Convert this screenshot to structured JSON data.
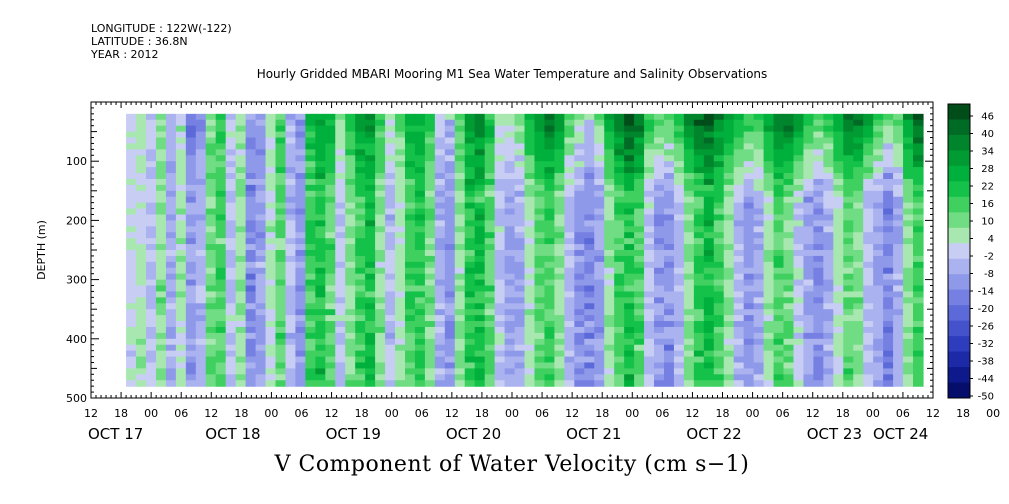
{
  "header": {
    "longitude": "LONGITUDE : 122W(-122)",
    "latitude": "LATITUDE : 36.8N",
    "year": "YEAR : 2012"
  },
  "chart_data": {
    "type": "heatmap",
    "title": "Hourly Gridded MBARI Mooring M1 Sea Water Temperature and Salinity Observations",
    "variable_label": "V Component of Water Velocity (cm s−1)",
    "ylabel": "DEPTH (m)",
    "ylim": [
      500,
      0
    ],
    "y_ticks": [
      "100",
      "200",
      "300",
      "400",
      "500"
    ],
    "y_tick_values": [
      100,
      200,
      300,
      400,
      500
    ],
    "x_hour_labels": [
      "12",
      "18",
      "00",
      "06",
      "12",
      "18",
      "00",
      "06",
      "12",
      "18",
      "00",
      "06",
      "12",
      "18",
      "00",
      "06",
      "12",
      "18",
      "00",
      "06",
      "12",
      "18",
      "00",
      "06",
      "12",
      "18",
      "00",
      "06",
      "12",
      "18",
      "00",
      "06",
      "12"
    ],
    "x_day_labels": [
      "OCT 17",
      "OCT 18",
      "OCT 19",
      "OCT 20",
      "OCT 21",
      "OCT 22",
      "OCT 23",
      "OCT 24"
    ],
    "x_range_hours": [
      "2012-10-17 12:00",
      "2012-10-24 12:00"
    ],
    "colorbar": {
      "labels": [
        "46",
        "40",
        "34",
        "28",
        "22",
        "16",
        "10",
        "4",
        "-2",
        "-8",
        "-14",
        "-20",
        "-26",
        "-32",
        "-38",
        "-44",
        "-50"
      ],
      "colors": [
        "#004d1a",
        "#006b24",
        "#00852c",
        "#009c33",
        "#00b03c",
        "#14c24a",
        "#40d060",
        "#70dc84",
        "#a8e8b0",
        "#c8cdf4",
        "#aab2f0",
        "#8f99ea",
        "#7580e2",
        "#5c69d8",
        "#4453cc",
        "#2e3dbd",
        "#1c2aa8",
        "#0e1a8c",
        "#060e6c"
      ]
    },
    "column_profile": [
      -1,
      2,
      -4,
      6,
      -8,
      3,
      -10,
      -6,
      8,
      12,
      -3,
      4,
      -14,
      -10,
      2,
      10,
      -6,
      -12,
      14,
      18,
      10,
      -4,
      6,
      14,
      18,
      6,
      -6,
      2,
      12,
      16,
      8,
      -8,
      -12,
      4,
      16,
      20,
      10,
      -4,
      -10,
      -8,
      2,
      10,
      14,
      6,
      -6,
      -12,
      -16,
      -10,
      4,
      12,
      18,
      12,
      -4,
      -10,
      -14,
      -6,
      6,
      14,
      20,
      14,
      4,
      -6,
      -12,
      -8,
      4,
      12,
      8,
      -2,
      -10,
      -14,
      -8,
      2,
      10,
      6,
      -4,
      -10,
      -16,
      -8,
      6,
      14
    ],
    "surface_strength": [
      0,
      0,
      0,
      0,
      0,
      0,
      -12,
      -14,
      0,
      4,
      0,
      0,
      0,
      0,
      0,
      6,
      0,
      0,
      8,
      12,
      14,
      10,
      12,
      16,
      14,
      10,
      8,
      10,
      14,
      12,
      10,
      6,
      8,
      10,
      14,
      12,
      10,
      8,
      14,
      18,
      22,
      24,
      26,
      28,
      24,
      20,
      18,
      22,
      26,
      28,
      30,
      26,
      22,
      24,
      28,
      30,
      32,
      28,
      26,
      24,
      28,
      32,
      34,
      30,
      26,
      28,
      32,
      36,
      34,
      30,
      28,
      26,
      30,
      32,
      34,
      30,
      26,
      24,
      26,
      28
    ]
  }
}
